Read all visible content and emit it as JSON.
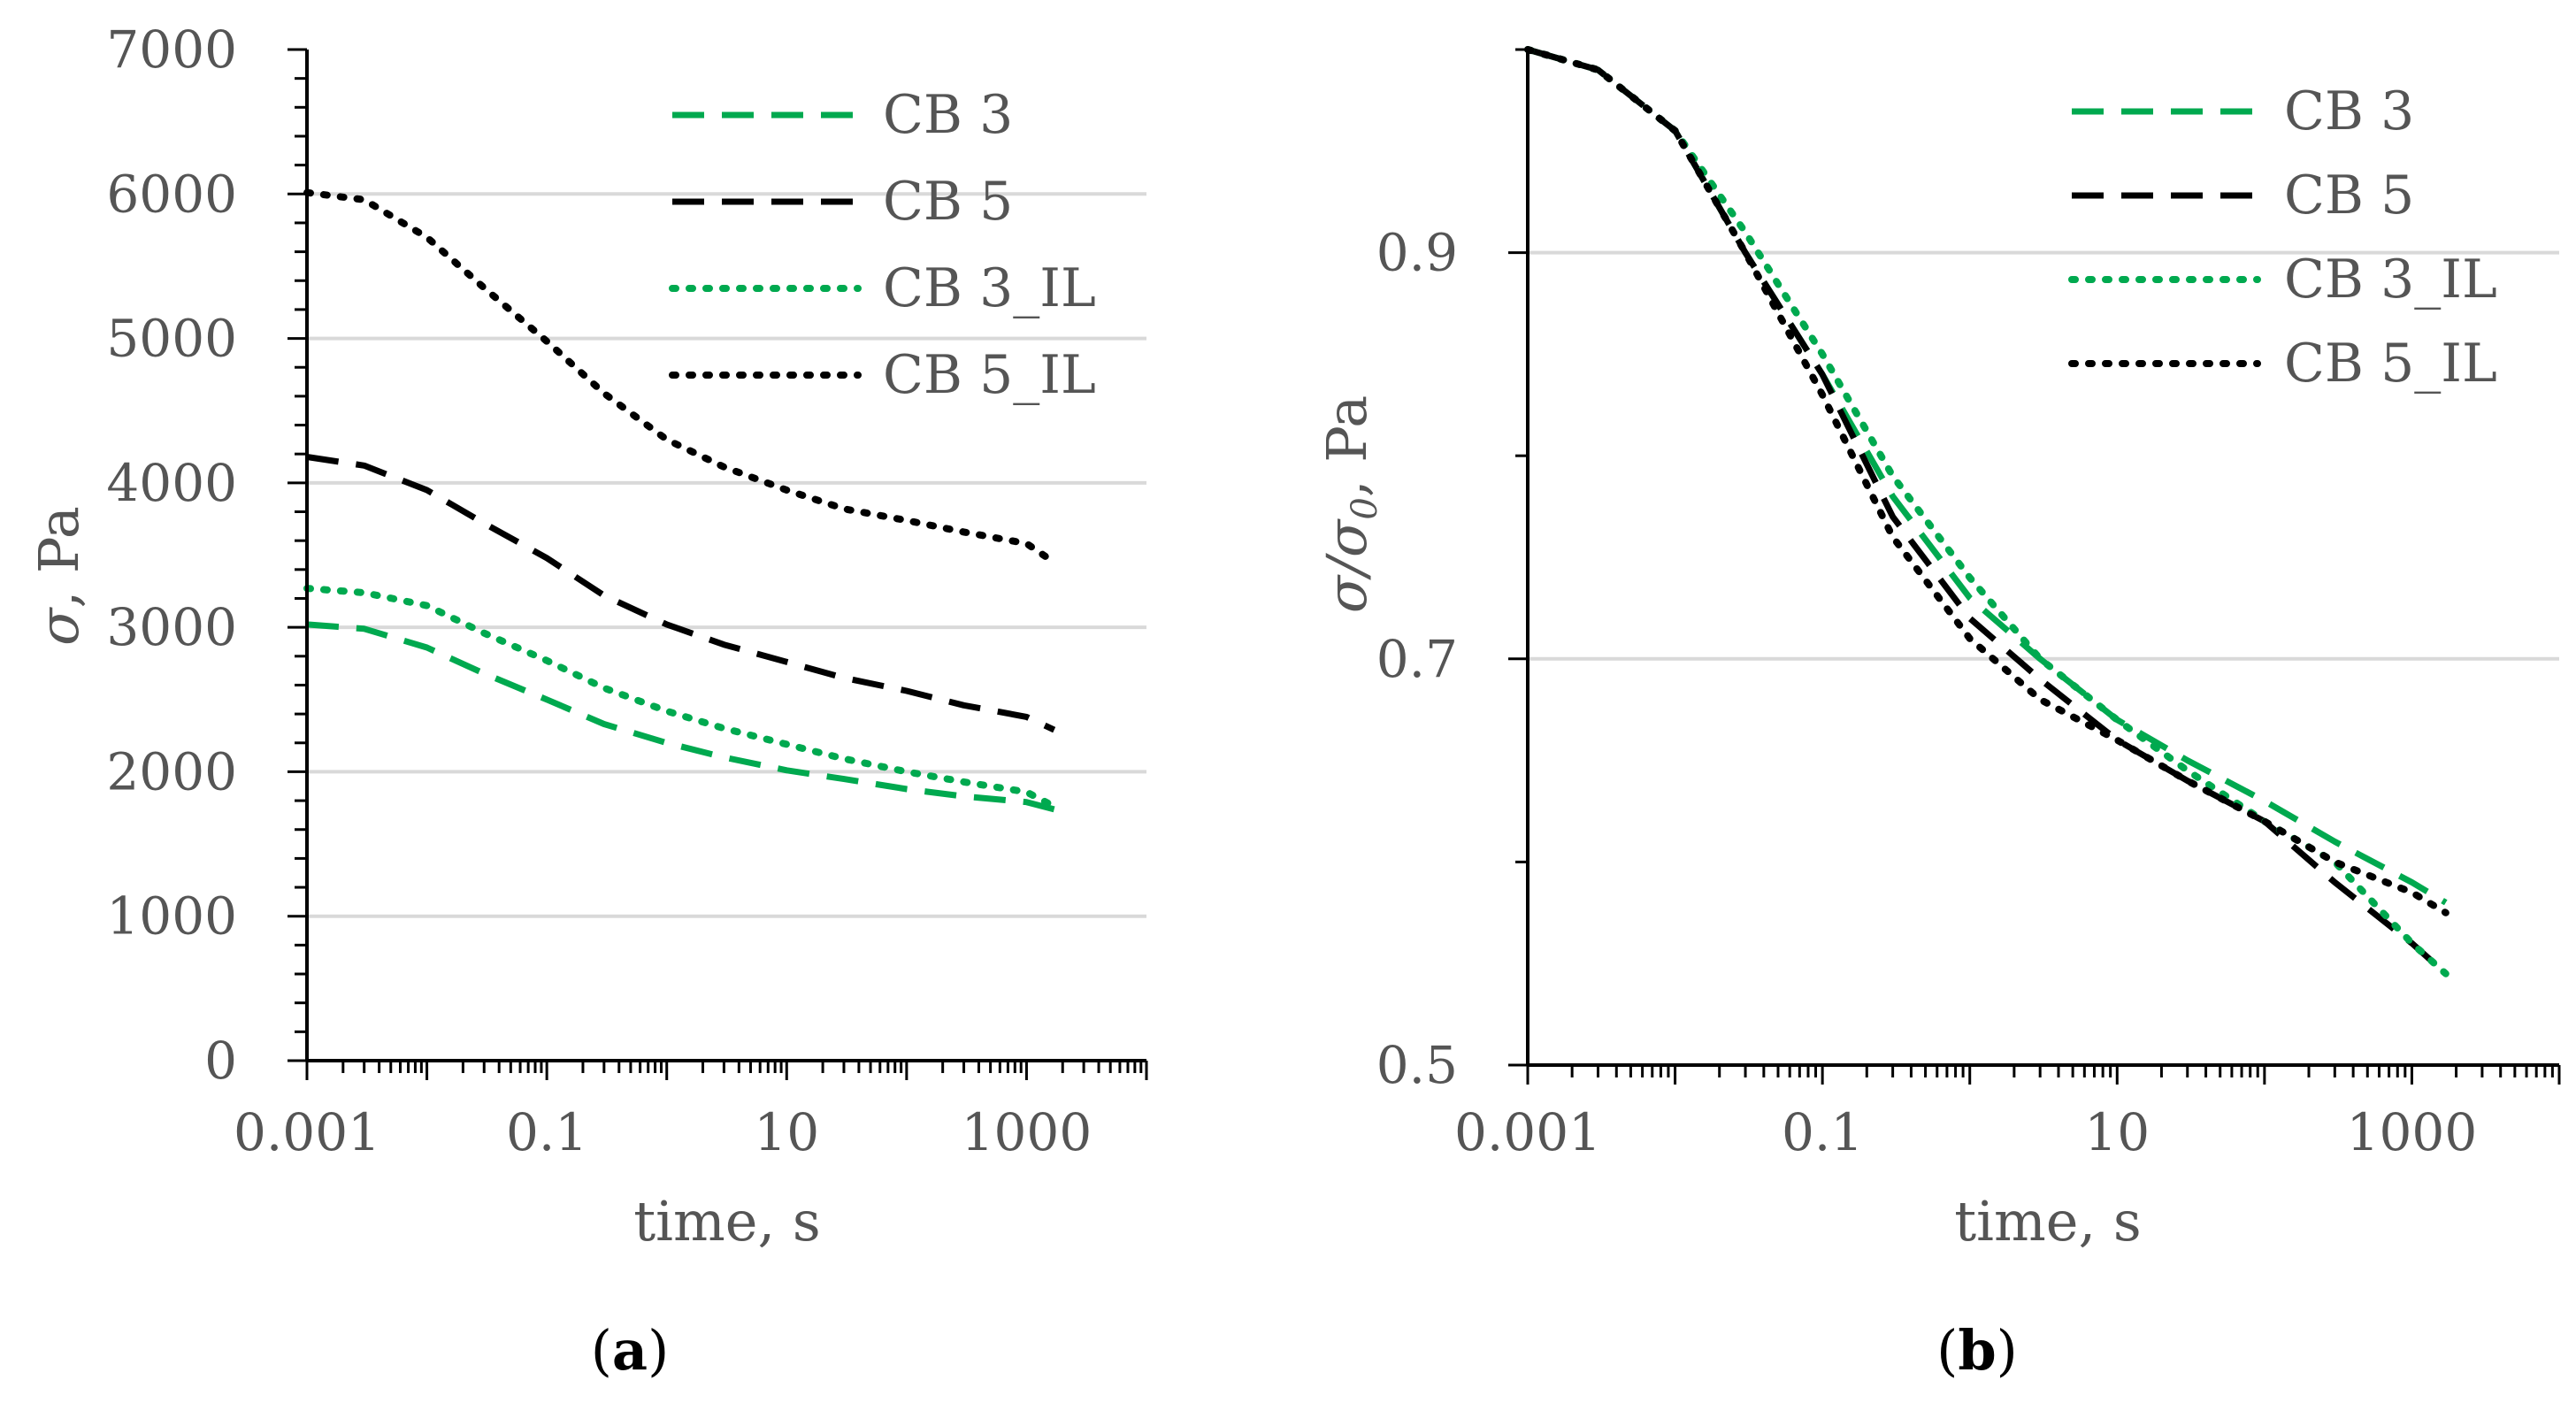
{
  "colors": {
    "green": "#00a94f",
    "black": "#000000",
    "grid": "#d9d9d9",
    "text": "#555555"
  },
  "chart_data": [
    {
      "panel": "a",
      "type": "line",
      "caption": {
        "open": "(",
        "letter": "a",
        "close": ")"
      },
      "xlabel": "time, s",
      "ylabel_symbol": "σ",
      "ylabel_unit": ", Pa",
      "xscale": "log",
      "xlim": [
        0.001,
        10000
      ],
      "ylim": [
        0,
        7000
      ],
      "xticks": [
        {
          "value": 0.001,
          "label": "0.001"
        },
        {
          "value": 0.1,
          "label": "0.1"
        },
        {
          "value": 10,
          "label": "10"
        },
        {
          "value": 1000,
          "label": "1000"
        }
      ],
      "yticks": [
        {
          "value": 0,
          "label": "0"
        },
        {
          "value": 1000,
          "label": "1000"
        },
        {
          "value": 2000,
          "label": "2000"
        },
        {
          "value": 3000,
          "label": "3000"
        },
        {
          "value": 4000,
          "label": "4000"
        },
        {
          "value": 5000,
          "label": "5000"
        },
        {
          "value": 6000,
          "label": "6000"
        },
        {
          "value": 7000,
          "label": "7000"
        }
      ],
      "gridlines_y": [
        1000,
        2000,
        3000,
        4000,
        5000,
        6000
      ],
      "legend_position": "top-right",
      "series": [
        {
          "name": "CB 3",
          "color": "green",
          "style": "dashed",
          "x": [
            0.001,
            0.003,
            0.01,
            0.03,
            0.1,
            0.3,
            1,
            3,
            10,
            30,
            100,
            300,
            1000,
            1700
          ],
          "y": [
            3020,
            2990,
            2860,
            2680,
            2500,
            2330,
            2200,
            2100,
            2010,
            1950,
            1880,
            1830,
            1790,
            1740
          ]
        },
        {
          "name": "CB 5",
          "color": "black",
          "style": "dashed",
          "x": [
            0.001,
            0.003,
            0.01,
            0.03,
            0.1,
            0.3,
            1,
            3,
            10,
            30,
            100,
            300,
            1000,
            1700
          ],
          "y": [
            4180,
            4120,
            3950,
            3720,
            3480,
            3220,
            3020,
            2880,
            2760,
            2650,
            2560,
            2460,
            2380,
            2290
          ]
        },
        {
          "name": "CB 3_IL",
          "color": "green",
          "style": "dotted",
          "x": [
            0.001,
            0.003,
            0.01,
            0.03,
            0.1,
            0.3,
            1,
            3,
            10,
            30,
            100,
            300,
            1000,
            1700
          ],
          "y": [
            3270,
            3240,
            3150,
            2960,
            2770,
            2580,
            2420,
            2300,
            2190,
            2090,
            2000,
            1930,
            1860,
            1760
          ]
        },
        {
          "name": "CB 5_IL",
          "color": "black",
          "style": "dotted",
          "x": [
            0.001,
            0.003,
            0.01,
            0.03,
            0.1,
            0.3,
            1,
            3,
            10,
            30,
            100,
            300,
            1000,
            1700
          ],
          "y": [
            6010,
            5960,
            5700,
            5350,
            4980,
            4620,
            4300,
            4110,
            3950,
            3820,
            3740,
            3660,
            3580,
            3450
          ]
        }
      ]
    },
    {
      "panel": "b",
      "type": "line",
      "caption": {
        "open": "(",
        "letter": "b",
        "close": ")"
      },
      "xlabel": "time, s",
      "ylabel_symbol": "σ/σ",
      "ylabel_sub": "0",
      "ylabel_unit": ", Pa",
      "xscale": "log",
      "xlim": [
        0.001,
        10000
      ],
      "ylim": [
        0.5,
        1.0
      ],
      "xticks": [
        {
          "value": 0.001,
          "label": "0.001"
        },
        {
          "value": 0.1,
          "label": "0.1"
        },
        {
          "value": 10,
          "label": "10"
        },
        {
          "value": 1000,
          "label": "1000"
        }
      ],
      "yticks": [
        {
          "value": 0.5,
          "label": "0.5"
        },
        {
          "value": 0.7,
          "label": "0.7"
        },
        {
          "value": 0.9,
          "label": "0.9"
        }
      ],
      "yminor": [
        0.6,
        0.8,
        1.0
      ],
      "gridlines_y": [
        0.7,
        0.9
      ],
      "legend_position": "top-right",
      "series": [
        {
          "name": "CB 3",
          "color": "green",
          "style": "dashed",
          "x": [
            0.001,
            0.003,
            0.01,
            0.03,
            0.1,
            0.3,
            1,
            3,
            10,
            30,
            100,
            300,
            1000,
            1700
          ],
          "y": [
            1.0,
            0.99,
            0.96,
            0.9,
            0.84,
            0.78,
            0.73,
            0.7,
            0.67,
            0.65,
            0.63,
            0.61,
            0.59,
            0.58
          ]
        },
        {
          "name": "CB 5",
          "color": "black",
          "style": "dashed",
          "x": [
            0.001,
            0.003,
            0.01,
            0.03,
            0.1,
            0.3,
            1,
            3,
            10,
            30,
            100,
            300,
            1000,
            1700
          ],
          "y": [
            1.0,
            0.99,
            0.96,
            0.9,
            0.84,
            0.77,
            0.72,
            0.69,
            0.66,
            0.64,
            0.62,
            0.59,
            0.56,
            0.545
          ]
        },
        {
          "name": "CB 3_IL",
          "color": "green",
          "style": "dotted",
          "x": [
            0.001,
            0.003,
            0.01,
            0.03,
            0.1,
            0.3,
            1,
            3,
            10,
            30,
            100,
            300,
            1000,
            1700
          ],
          "y": [
            1.0,
            0.99,
            0.96,
            0.91,
            0.85,
            0.79,
            0.74,
            0.7,
            0.67,
            0.645,
            0.62,
            0.6,
            0.56,
            0.545
          ]
        },
        {
          "name": "CB 5_IL",
          "color": "black",
          "style": "dotted",
          "x": [
            0.001,
            0.003,
            0.01,
            0.03,
            0.1,
            0.3,
            1,
            3,
            10,
            30,
            100,
            300,
            1000,
            1700
          ],
          "y": [
            1.0,
            0.99,
            0.96,
            0.9,
            0.83,
            0.76,
            0.71,
            0.68,
            0.66,
            0.64,
            0.62,
            0.6,
            0.585,
            0.575
          ]
        }
      ]
    }
  ]
}
